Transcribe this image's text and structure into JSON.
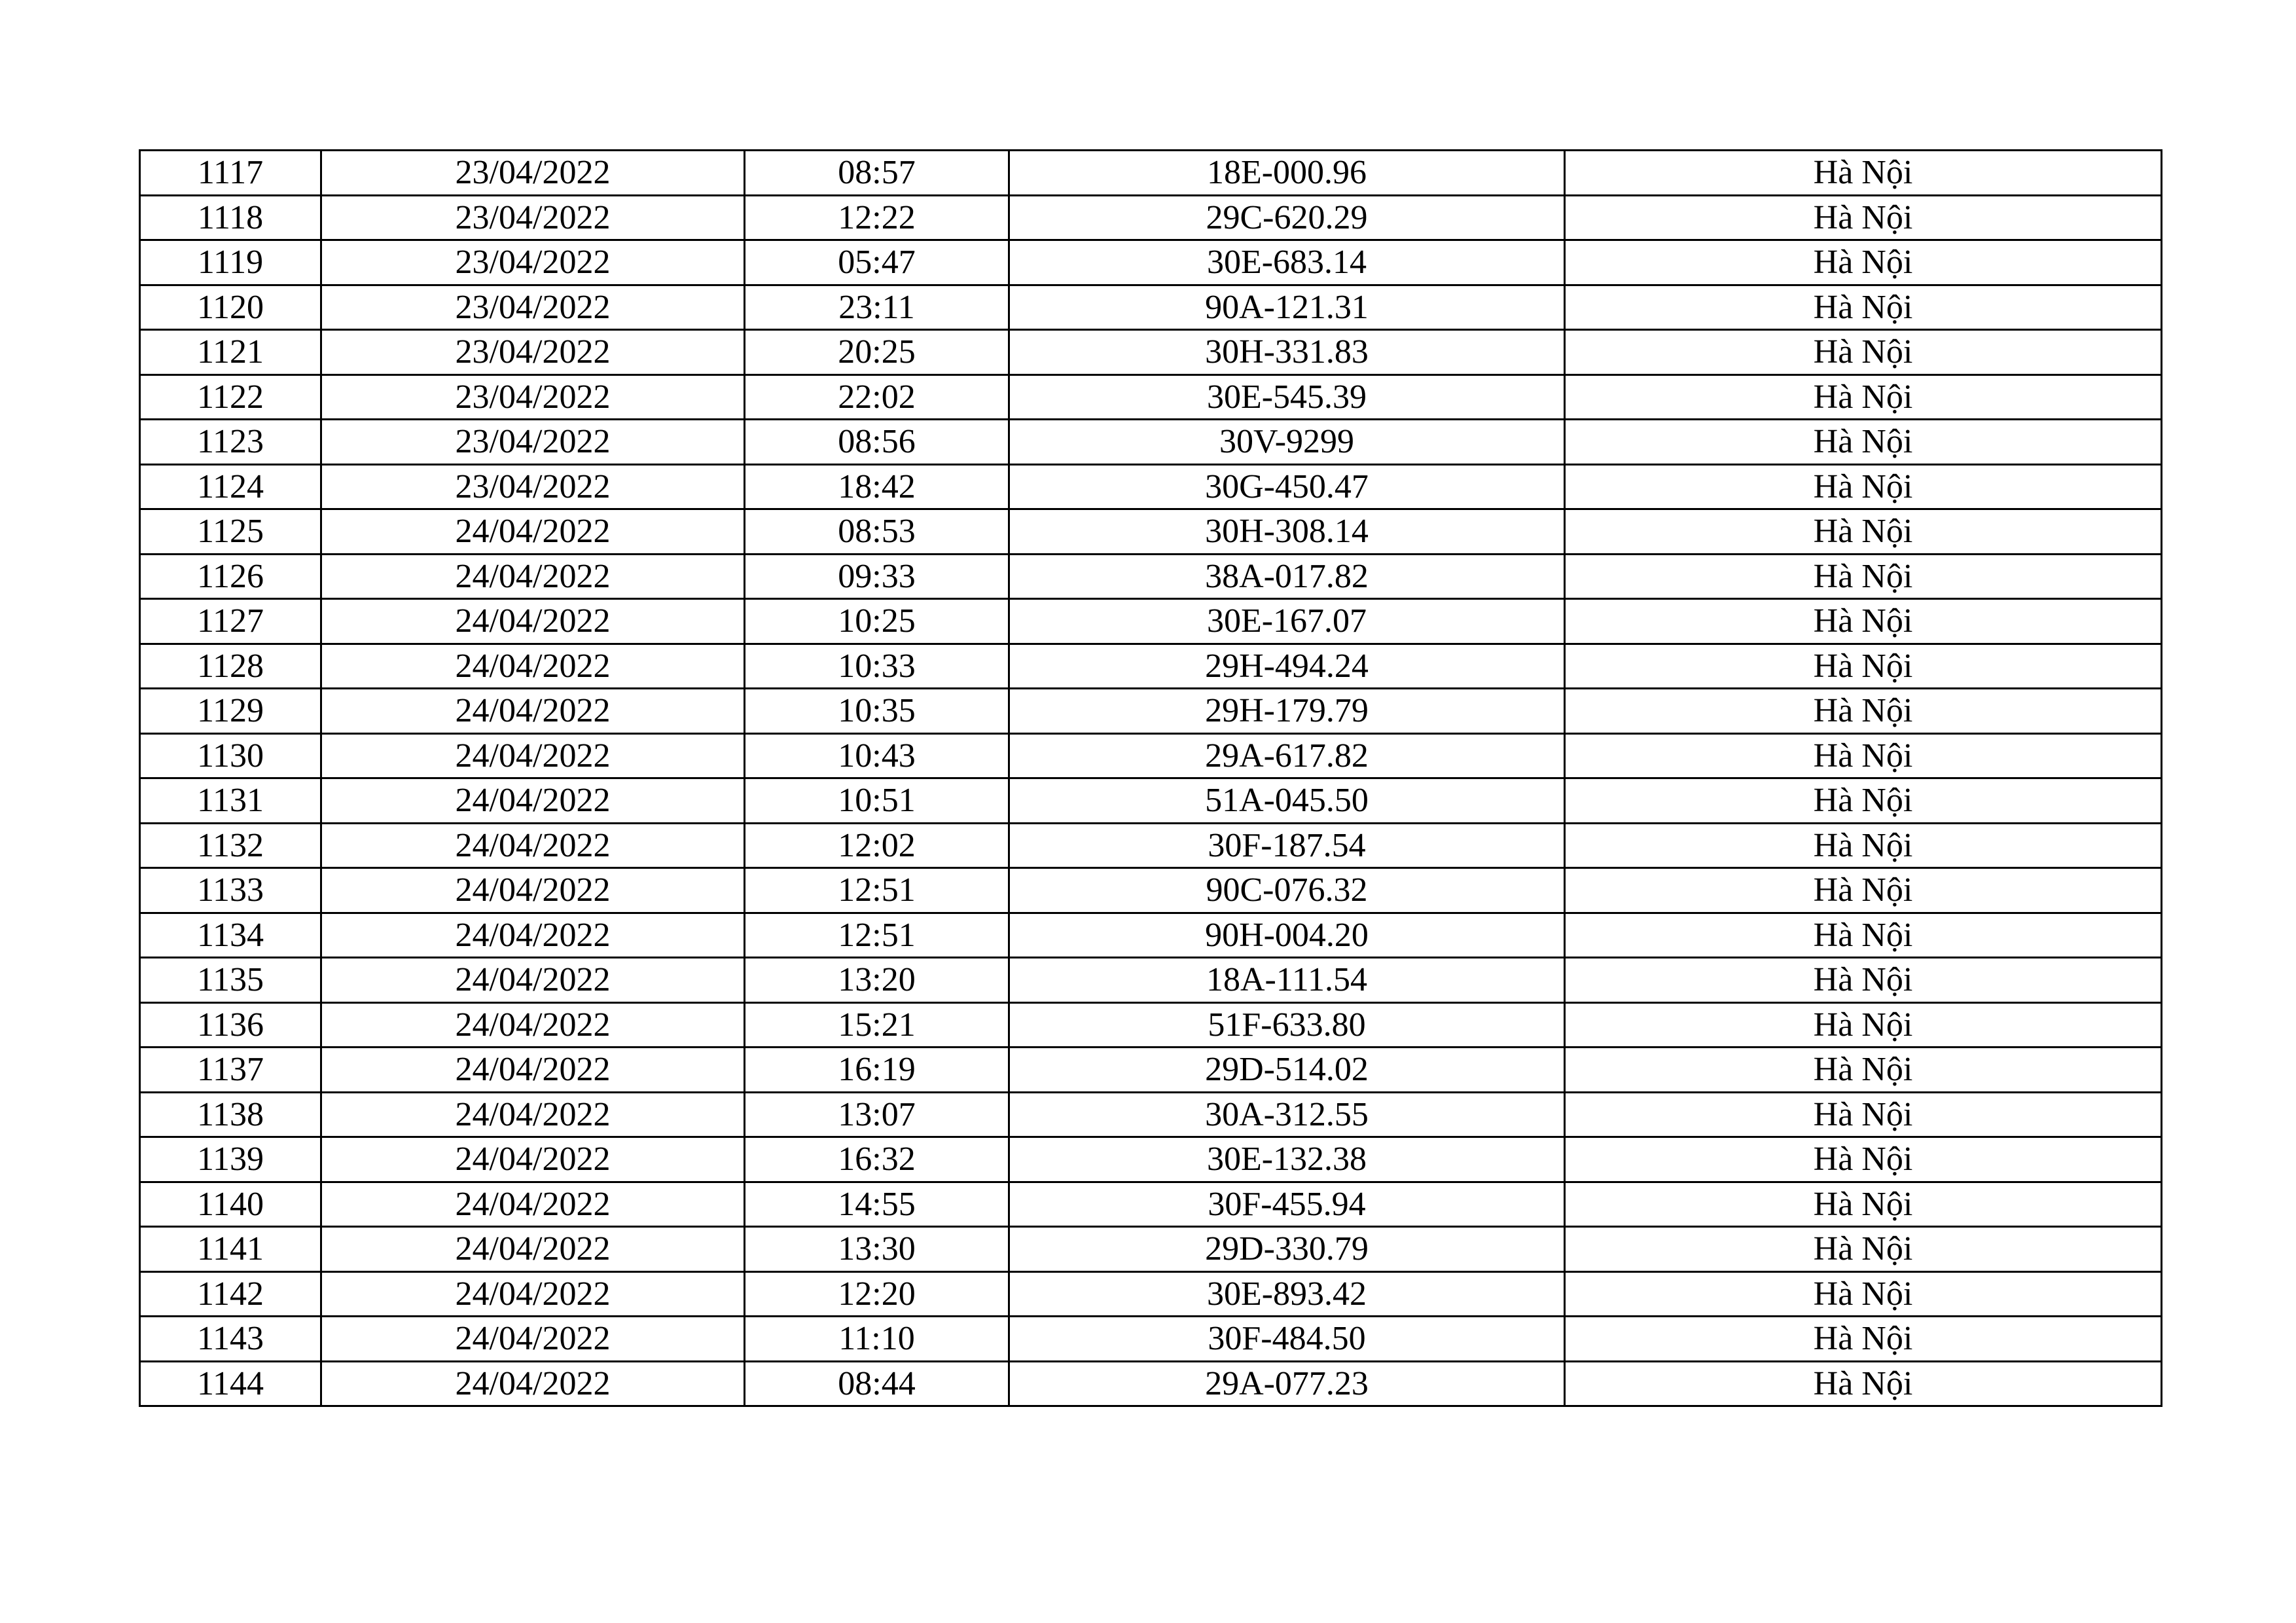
{
  "table": {
    "rows": [
      [
        "1117",
        "23/04/2022",
        "08:57",
        "18E-000.96",
        "Hà Nội"
      ],
      [
        "1118",
        "23/04/2022",
        "12:22",
        "29C-620.29",
        "Hà Nội"
      ],
      [
        "1119",
        "23/04/2022",
        "05:47",
        "30E-683.14",
        "Hà Nội"
      ],
      [
        "1120",
        "23/04/2022",
        "23:11",
        "90A-121.31",
        "Hà Nội"
      ],
      [
        "1121",
        "23/04/2022",
        "20:25",
        "30H-331.83",
        "Hà Nội"
      ],
      [
        "1122",
        "23/04/2022",
        "22:02",
        "30E-545.39",
        "Hà Nội"
      ],
      [
        "1123",
        "23/04/2022",
        "08:56",
        "30V-9299",
        "Hà Nội"
      ],
      [
        "1124",
        "23/04/2022",
        "18:42",
        "30G-450.47",
        "Hà Nội"
      ],
      [
        "1125",
        "24/04/2022",
        "08:53",
        "30H-308.14",
        "Hà Nội"
      ],
      [
        "1126",
        "24/04/2022",
        "09:33",
        "38A-017.82",
        "Hà Nội"
      ],
      [
        "1127",
        "24/04/2022",
        "10:25",
        "30E-167.07",
        "Hà Nội"
      ],
      [
        "1128",
        "24/04/2022",
        "10:33",
        "29H-494.24",
        "Hà Nội"
      ],
      [
        "1129",
        "24/04/2022",
        "10:35",
        "29H-179.79",
        "Hà Nội"
      ],
      [
        "1130",
        "24/04/2022",
        "10:43",
        "29A-617.82",
        "Hà Nội"
      ],
      [
        "1131",
        "24/04/2022",
        "10:51",
        "51A-045.50",
        "Hà Nội"
      ],
      [
        "1132",
        "24/04/2022",
        "12:02",
        "30F-187.54",
        "Hà Nội"
      ],
      [
        "1133",
        "24/04/2022",
        "12:51",
        "90C-076.32",
        "Hà Nội"
      ],
      [
        "1134",
        "24/04/2022",
        "12:51",
        "90H-004.20",
        "Hà Nội"
      ],
      [
        "1135",
        "24/04/2022",
        "13:20",
        "18A-111.54",
        "Hà Nội"
      ],
      [
        "1136",
        "24/04/2022",
        "15:21",
        "51F-633.80",
        "Hà Nội"
      ],
      [
        "1137",
        "24/04/2022",
        "16:19",
        "29D-514.02",
        "Hà Nội"
      ],
      [
        "1138",
        "24/04/2022",
        "13:07",
        "30A-312.55",
        "Hà Nội"
      ],
      [
        "1139",
        "24/04/2022",
        "16:32",
        "30E-132.38",
        "Hà Nội"
      ],
      [
        "1140",
        "24/04/2022",
        "14:55",
        "30F-455.94",
        "Hà Nội"
      ],
      [
        "1141",
        "24/04/2022",
        "13:30",
        "29D-330.79",
        "Hà Nội"
      ],
      [
        "1142",
        "24/04/2022",
        "12:20",
        "30E-893.42",
        "Hà Nội"
      ],
      [
        "1143",
        "24/04/2022",
        "11:10",
        "30F-484.50",
        "Hà Nội"
      ],
      [
        "1144",
        "24/04/2022",
        "08:44",
        "29A-077.23",
        "Hà Nội"
      ]
    ]
  }
}
